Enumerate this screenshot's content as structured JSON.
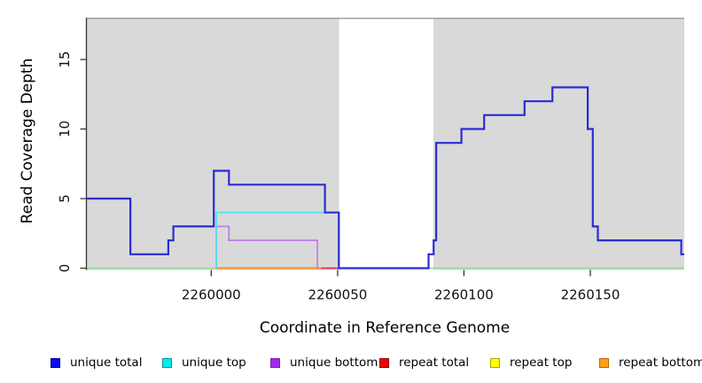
{
  "chart_data": {
    "type": "line",
    "subtype": "step",
    "title": "",
    "xlabel": "Coordinate in Reference Genome",
    "ylabel": "Read Coverage Depth",
    "xlim": [
      2259950.6,
      2260187.2
    ],
    "ylim": [
      -0.13,
      18.0
    ],
    "x_ticks": [
      2260000,
      2260050,
      2260100,
      2260150
    ],
    "y_ticks": [
      0,
      5,
      10,
      15
    ],
    "grid": false,
    "legend_position": "bottom",
    "background": {
      "plot_bg": "#d9d9d9",
      "top_border": "#999999",
      "gap_band": {
        "from": 2260050.6,
        "to": 2260087.9,
        "color": "#ffffff"
      }
    },
    "series": [
      {
        "name": "zero-baseline-left",
        "in_legend": false,
        "color": "#8cd98c",
        "width": 1.6,
        "points": [
          [
            2259950.6,
            0
          ]
        ],
        "end": 2260002
      },
      {
        "name": "zero-baseline-right",
        "in_legend": false,
        "color": "#8cd98c",
        "width": 1.6,
        "points": [
          [
            2260086,
            0
          ]
        ],
        "end": 2260187.2
      },
      {
        "name": "repeat bottom",
        "in_legend": true,
        "color": "#ff8c1a",
        "width": 2,
        "points": [
          [
            2260002,
            0
          ]
        ],
        "end": 2260043.5
      },
      {
        "name": "repeat total",
        "in_legend": true,
        "color": "#e02858",
        "width": 1.8,
        "points": [
          [
            2260043.5,
            0
          ]
        ],
        "end": 2260050.5
      },
      {
        "name": "repeat top",
        "in_legend": true,
        "color": "#ffff00",
        "width": 1.6,
        "points": [],
        "end": null
      },
      {
        "name": "unique bottom",
        "in_legend": true,
        "color": "#be7beb",
        "width": 1.7,
        "points": [
          [
            2260002,
            0
          ],
          [
            2260002,
            3
          ],
          [
            2260007,
            2
          ],
          [
            2260042,
            0
          ]
        ],
        "end": 2260042
      },
      {
        "name": "unique top",
        "in_legend": true,
        "color": "#4fe3ef",
        "width": 1.7,
        "points": [
          [
            2260002,
            0
          ],
          [
            2260002,
            4
          ]
        ],
        "end": 2260045
      },
      {
        "name": "unique total",
        "in_legend": true,
        "color": "#2b2bd5",
        "width": 2.2,
        "points": [
          [
            2259950.6,
            5
          ],
          [
            2259968,
            1
          ],
          [
            2259983,
            2
          ],
          [
            2259985,
            3
          ],
          [
            2260001,
            7
          ],
          [
            2260007,
            6
          ],
          [
            2260045,
            4
          ],
          [
            2260050.5,
            0
          ],
          [
            2260086,
            1
          ],
          [
            2260088,
            2
          ],
          [
            2260089,
            9
          ],
          [
            2260099,
            10
          ],
          [
            2260108,
            11
          ],
          [
            2260124,
            12
          ],
          [
            2260135,
            13
          ],
          [
            2260149,
            10
          ],
          [
            2260151,
            3
          ],
          [
            2260153,
            2
          ],
          [
            2260186,
            1
          ]
        ],
        "end": 2260187.2
      }
    ],
    "legend": [
      {
        "label": "unique total",
        "fill": "#0b0beb",
        "border": "#000090"
      },
      {
        "label": "unique top",
        "fill": "#00ebeb",
        "border": "#009898"
      },
      {
        "label": "unique bottom",
        "fill": "#a428ec",
        "border": "#7a1fb8"
      },
      {
        "label": "repeat total",
        "fill": "#f00000",
        "border": "#900000"
      },
      {
        "label": "repeat top",
        "fill": "#ffff00",
        "border": "#a8a800"
      },
      {
        "label": "repeat bottom",
        "fill": "#ffa018",
        "border": "#b06800"
      }
    ]
  }
}
